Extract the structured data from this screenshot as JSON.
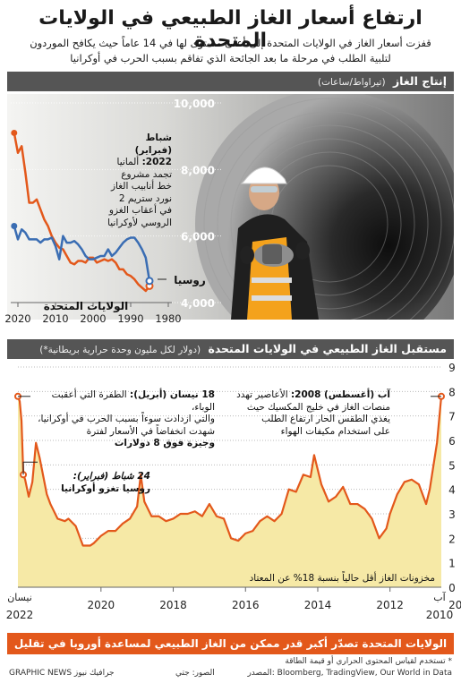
{
  "header": {
    "title": "ارتفاع أسعار الغاز الطبيعي في الولايات المتحدة",
    "subtitle_line1": "قفزت أسعار الغاز في الولايات المتحدة إلى أعلى مستوى لها في 14 عاماً حيث يكافح الموردون",
    "subtitle_line2": "لتلبية الطلب في مرحلة ما بعد الجائحة الذي تفاقم بسبب الحرب في أوكرانيا"
  },
  "production": {
    "bar_title": "إنتاج الغاز",
    "bar_unit": "(تيراواط/ساعات)",
    "annotation_date": "شباط (فبراير) 2022:",
    "annotation_text": "ألمانيا تجمد مشروع خط أنابيب الغاز نورد ستريم 2 في أعقاب الغزو الروسي لأوكرانيا"
  },
  "future": {
    "bar_title": "مستقبل الغاز الطبيعي في الولايات المتحدة",
    "bar_unit": "(دولار لكل مليون وحدة حرارية بريطانية*)",
    "ann_apr_date": "18 نيسان (أبريل):",
    "ann_apr_text1": "الطفرة التي أعقبت الوباء،",
    "ann_apr_text2": "والتي ازدادت سوءاً بسبب الحرب في أوكرانيا،",
    "ann_apr_text3": "شهدت انخفاضاً في الأسعار لفترة",
    "ann_apr_text4": "وجيزة فوق 8 دولارات",
    "ann_aug_date": "آب (أغسطس) 2008:",
    "ann_aug_text1": "الأعاصير تهدد",
    "ann_aug_text2": "منصات الغاز في خليج المكسيك حيث",
    "ann_aug_text3": "يغذي الطقس الحار ارتفاع الطلب",
    "ann_aug_text4": "على استخدام مكيفات الهواء",
    "ann_feb_date": "24 شباط (فبراير):",
    "ann_feb_text": "روسيا تغزو أوكرانيا",
    "storage_note": "مخزونات الغاز أقل حالياً بنسبة 18% عن المعتاد",
    "x_left_top": "نيسان",
    "x_left_bottom": "2022",
    "x_right_top": "آب",
    "x_right_bottom": "2010"
  },
  "footer": {
    "banner": "الولايات المتحدة تصدّر أكبر قدر ممكن من الغاز الطبيعي لمساعدة أوروبا في تقليل الاعتماد على الطاقة الروسية",
    "note": "* تستخدم لقياس المحتوى الحراري أو قيمة الطاقة",
    "source": "المصدر: Bloomberg, TradingView, Our World in Data",
    "photo_credit": "الصور: جتي",
    "brand": "GRAPHIC NEWS جرافيك نيوز"
  },
  "colors": {
    "us_line": "#e3581b",
    "russia_line": "#3a6db3",
    "fill": "#f6e9a6",
    "bar": "#555555",
    "banner": "#e3581b"
  },
  "chart_data": [
    {
      "type": "line",
      "title": "إنتاج الغاز",
      "ylabel": "(تيراواط/ساعات)",
      "x_reversed": true,
      "xlim": [
        1980,
        2020
      ],
      "ylim": [
        4000,
        10000
      ],
      "x_ticks": [
        2020,
        2010,
        2000,
        1990,
        1980
      ],
      "y_ticks": [
        4000,
        6000,
        8000,
        10000
      ],
      "series": [
        {
          "name": "الولايات المتحدة",
          "color": "#e3581b",
          "x": [
            2021,
            2020,
            2019,
            2018,
            2017,
            2016,
            2015,
            2014,
            2013,
            2012,
            2011,
            2010,
            2009,
            2008,
            2007,
            2006,
            2005,
            2004,
            2003,
            2002,
            2001,
            2000,
            1999,
            1998,
            1997,
            1996,
            1995,
            1994,
            1993,
            1992,
            1991,
            1990,
            1989,
            1988,
            1987,
            1986,
            1985
          ],
          "y": [
            9100,
            8500,
            8700,
            7900,
            7000,
            7000,
            7100,
            6800,
            6500,
            6300,
            6000,
            5800,
            5650,
            5600,
            5400,
            5200,
            5150,
            5250,
            5250,
            5200,
            5350,
            5350,
            5200,
            5250,
            5300,
            5250,
            5300,
            5200,
            5000,
            5000,
            4850,
            4800,
            4700,
            4550,
            4450,
            4350,
            4500
          ]
        },
        {
          "name": "روسيا",
          "color": "#3a6db3",
          "x": [
            2021,
            2020,
            2019,
            2018,
            2017,
            2016,
            2015,
            2014,
            2013,
            2012,
            2011,
            2010,
            2009,
            2008,
            2007,
            2006,
            2005,
            2004,
            2003,
            2002,
            2001,
            2000,
            1999,
            1998,
            1997,
            1996,
            1995,
            1994,
            1993,
            1992,
            1991,
            1990,
            1989,
            1988,
            1987,
            1986,
            1985
          ],
          "y": [
            6300,
            5900,
            6200,
            6100,
            5900,
            5900,
            5900,
            5800,
            5900,
            5900,
            5950,
            5700,
            5300,
            6000,
            5800,
            5800,
            5850,
            5750,
            5600,
            5400,
            5300,
            5300,
            5350,
            5400,
            5400,
            5600,
            5400,
            5500,
            5650,
            5800,
            5900,
            5950,
            5950,
            5800,
            5600,
            5350,
            4650
          ]
        }
      ]
    },
    {
      "type": "area",
      "title": "مستقبل الغاز الطبيعي في الولايات المتحدة",
      "ylabel": "(دولار لكل مليون وحدة حرارية بريطانية*)",
      "x_reversed": true,
      "xlim": [
        2010.58,
        2022.3
      ],
      "ylim": [
        0,
        9
      ],
      "x_ticks": [
        2020,
        2018,
        2016,
        2014,
        2012,
        2010
      ],
      "y_ticks": [
        0,
        1,
        2,
        3,
        4,
        5,
        6,
        7,
        8,
        9
      ],
      "series": [
        {
          "name": "",
          "color": "#e3581b",
          "x": [
            2010.58,
            2010.7,
            2010.9,
            2011.0,
            2011.2,
            2011.4,
            2011.6,
            2011.8,
            2012.0,
            2012.1,
            2012.3,
            2012.5,
            2012.7,
            2012.9,
            2013.1,
            2013.3,
            2013.5,
            2013.7,
            2013.9,
            2014.1,
            2014.2,
            2014.4,
            2014.6,
            2014.8,
            2015.0,
            2015.2,
            2015.4,
            2015.6,
            2015.8,
            2016.0,
            2016.2,
            2016.4,
            2016.6,
            2016.8,
            2017.0,
            2017.2,
            2017.4,
            2017.6,
            2017.8,
            2018.0,
            2018.2,
            2018.4,
            2018.6,
            2018.8,
            2018.9,
            2019.0,
            2019.2,
            2019.4,
            2019.6,
            2019.8,
            2020.0,
            2020.2,
            2020.3,
            2020.5,
            2020.7,
            2020.9,
            2021.0,
            2021.2,
            2021.4,
            2021.5,
            2021.7,
            2021.8,
            2021.9,
            2022.0,
            2022.1,
            2022.15,
            2022.2,
            2022.25,
            2022.3
          ],
          "y": [
            7.8,
            5.9,
            4.0,
            3.4,
            4.2,
            4.4,
            4.3,
            3.8,
            3.0,
            2.4,
            2.0,
            2.8,
            3.2,
            3.4,
            3.4,
            4.1,
            3.7,
            3.5,
            4.2,
            5.4,
            4.5,
            4.6,
            3.9,
            4.0,
            3.0,
            2.7,
            2.9,
            2.7,
            2.3,
            2.2,
            1.9,
            2.0,
            2.8,
            2.9,
            3.4,
            2.9,
            3.1,
            3.0,
            3.0,
            2.8,
            2.7,
            2.9,
            2.9,
            3.5,
            4.6,
            3.3,
            2.8,
            2.6,
            2.3,
            2.3,
            2.1,
            1.8,
            1.7,
            1.7,
            2.5,
            2.8,
            2.7,
            2.8,
            3.4,
            3.8,
            5.3,
            5.9,
            4.3,
            3.7,
            4.4,
            4.6,
            6.8,
            7.6,
            7.8
          ]
        }
      ]
    }
  ]
}
